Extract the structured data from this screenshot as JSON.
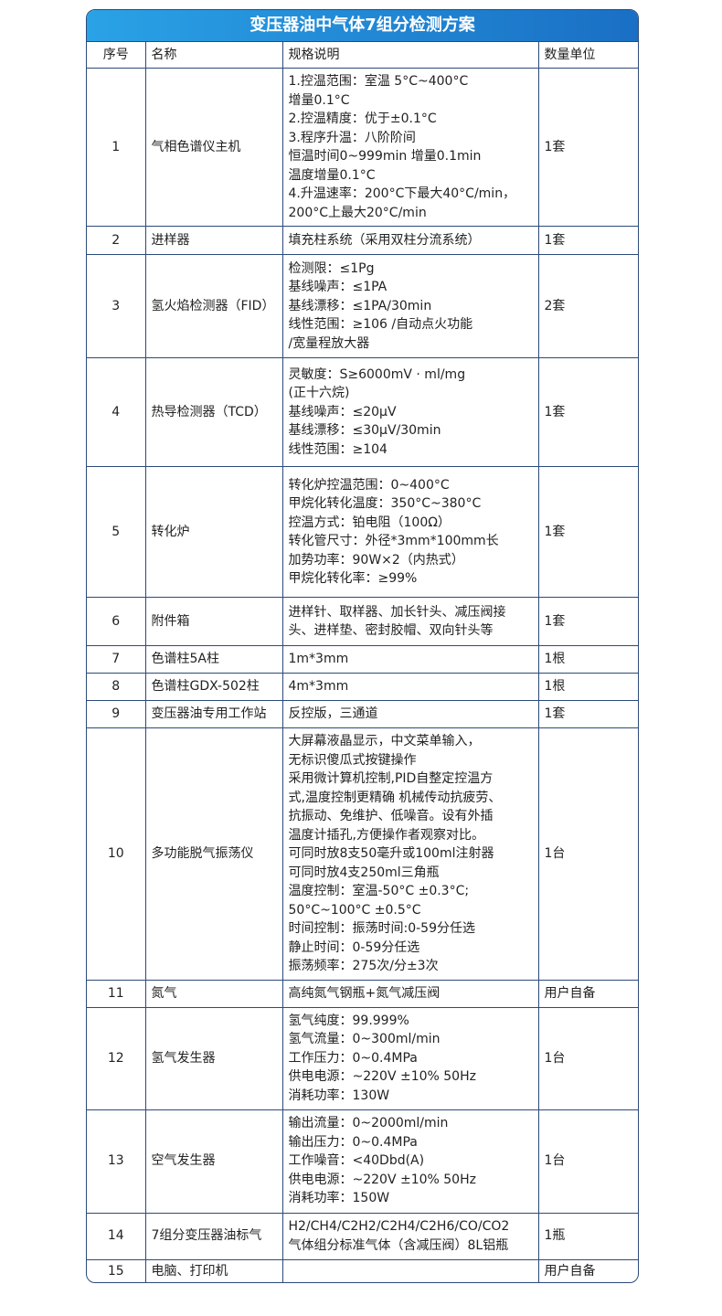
{
  "title": "变压器油中气体7组分检测方案",
  "headers": [
    "序号",
    "名称",
    "规格说明",
    "数量单位"
  ],
  "rows": [
    {
      "no": "1",
      "name": "气相色谱仪主机",
      "spec": "1.控温范围：室温 5°C~400°C\n增量0.1°C\n2.控温精度：优于±0.1°C\n3.程序升温：八阶阶间\n恒温时间0~999min 增量0.1min\n温度增量0.1°C\n4.升温速率：200°C下最大40°C/min，\n200°C上最大20°C/min",
      "qty": "1套"
    },
    {
      "no": "2",
      "name": "进样器",
      "spec": "填充柱系统（采用双柱分流系统）",
      "qty": "1套"
    },
    {
      "no": "3",
      "name": "氢火焰检测器（FID）",
      "spec": "检测限：≤1Pg\n基线噪声：≤1PA\n基线漂移：≤1PA/30min\n线性范围：≥106 /自动点火功能\n/宽量程放大器",
      "qty": "2套"
    },
    {
      "no": "4",
      "name": "热导检测器（TCD）",
      "spec": "灵敏度：S≥6000mV · ml/mg\n(正十六烷)\n基线噪声：≤20μV\n基线漂移：≤30μV/30min\n线性范围：≥104",
      "qty": "1套"
    },
    {
      "no": "5",
      "name": "转化炉",
      "spec": "转化炉控温范围：0~400°C\n甲烷化转化温度：350°C~380°C\n控温方式：铂电阻（100Ω）\n转化管尺寸：外径*3mm*100mm长\n加势功率：90W×2（内热式）\n甲烷化转化率：≥99%",
      "qty": "1套"
    },
    {
      "no": "6",
      "name": "附件箱",
      "spec": "进样针、取样器、加长针头、减压阀接\n头、进样垫、密封胶帽、双向针头等",
      "qty": "1套"
    },
    {
      "no": "7",
      "name": "色谱柱5A柱",
      "spec": "1m*3mm",
      "qty": "1根"
    },
    {
      "no": "8",
      "name": "色谱柱GDX-502柱",
      "spec": "4m*3mm",
      "qty": "1根"
    },
    {
      "no": "9",
      "name": "变压器油专用工作站",
      "spec": "反控版，三通道",
      "qty": "1套"
    },
    {
      "no": "10",
      "name": "多功能脱气振荡仪",
      "spec": "大屏幕液晶显示，中文菜单输入，\n无标识傻瓜式按键操作\n采用微计算机控制,PID自整定控温方\n式,温度控制更精确 机械传动抗疲劳、\n抗振动、免维护、低噪音。设有外插\n温度计插孔,方便操作者观察对比。\n可同时放8支50毫升或100ml注射器\n可同时放4支250ml三角瓶\n温度控制：室温-50°C ±0.3°C;\n 50°C~100°C ±0.5°C\n时间控制：振荡时间:0-59分任选\n静止时间：0-59分任选\n振荡频率：275次/分±3次",
      "qty": "1台"
    },
    {
      "no": "11",
      "name": "氮气",
      "spec": "高纯氮气钢瓶+氮气减压阀",
      "qty": "用户自备"
    },
    {
      "no": "12",
      "name": "氢气发生器",
      "spec": "氢气纯度：99.999%\n氢气流量：0~300ml/min\n工作压力：0~0.4MPa\n供电电源：~220V ±10% 50Hz\n消耗功率：130W",
      "qty": "1台"
    },
    {
      "no": "13",
      "name": "空气发生器",
      "spec": "输出流量：0~2000ml/min\n输出压力：0~0.4MPa\n工作噪音：<40Dbd(A)\n供电电源：~220V ±10% 50Hz\n消耗功率：150W",
      "qty": "1台"
    },
    {
      "no": "14",
      "name": "7组分变压器油标气",
      "spec": "H2/CH4/C2H2/C2H4/C2H6/CO/CO2\n气体组分标准气体（含减压阀）8L铝瓶",
      "qty": "1瓶"
    },
    {
      "no": "15",
      "name": "电脑、打印机",
      "spec": "",
      "qty": "用户自备"
    }
  ]
}
